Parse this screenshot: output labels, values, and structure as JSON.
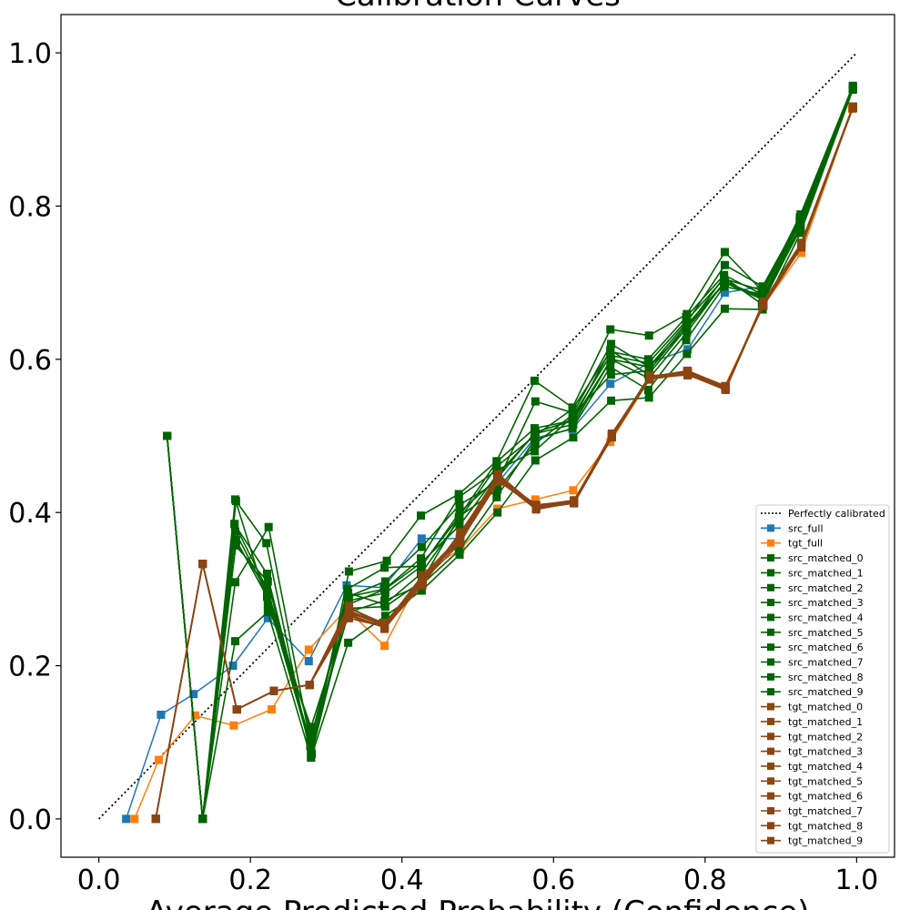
{
  "chart_data": {
    "type": "line",
    "title": "Calibration Curves",
    "xlabel": "Average Predicted Probability (Confidence)",
    "ylabel": "",
    "xlim": [
      -0.05,
      1.05
    ],
    "ylim": [
      -0.05,
      1.05
    ],
    "xticks": [
      0.0,
      0.2,
      0.4,
      0.6,
      0.8,
      1.0
    ],
    "yticks": [
      0.0,
      0.2,
      0.4,
      0.6,
      0.8,
      1.0
    ],
    "xtick_labels": [
      "0.0",
      "0.2",
      "0.4",
      "0.6",
      "0.8",
      "1.0"
    ],
    "ytick_labels": [
      "0.0",
      "0.2",
      "0.4",
      "0.6",
      "0.8",
      "1.0"
    ],
    "grid": false,
    "legend_position": "lower-right",
    "colors": {
      "perfect": "#000000",
      "src_full": "#1f77b4",
      "tgt_full": "#ff7f0e",
      "src_matched": "#006400",
      "tgt_matched": "#8b4513"
    },
    "series": [
      {
        "name": "Perfectly calibrated",
        "style": "dotted",
        "marker": "none",
        "color": "#000000",
        "x": [
          0.0,
          1.0
        ],
        "y": [
          0.0,
          1.0
        ]
      },
      {
        "name": "src_full",
        "style": "solid",
        "marker": "square",
        "color": "#1f77b4",
        "x": [
          0.036,
          0.082,
          0.125,
          0.177,
          0.223,
          0.277,
          0.327,
          0.376,
          0.426,
          0.476,
          0.525,
          0.575,
          0.625,
          0.675,
          0.726,
          0.777,
          0.826,
          0.876,
          0.926,
          0.995
        ],
        "y": [
          0.0,
          0.136,
          0.163,
          0.2,
          0.262,
          0.206,
          0.305,
          0.302,
          0.366,
          0.366,
          0.437,
          0.497,
          0.509,
          0.568,
          0.595,
          0.613,
          0.687,
          0.695,
          0.77,
          0.953
        ]
      },
      {
        "name": "tgt_full",
        "style": "solid",
        "marker": "square",
        "color": "#ff7f0e",
        "x": [
          0.047,
          0.079,
          0.127,
          0.178,
          0.228,
          0.277,
          0.327,
          0.377,
          0.427,
          0.477,
          0.526,
          0.576,
          0.626,
          0.675,
          0.726,
          0.776,
          0.826,
          0.876,
          0.927,
          0.994
        ],
        "y": [
          0.0,
          0.077,
          0.135,
          0.122,
          0.143,
          0.221,
          0.274,
          0.226,
          0.321,
          0.352,
          0.405,
          0.417,
          0.429,
          0.492,
          0.573,
          0.585,
          0.565,
          0.669,
          0.739,
          0.927
        ]
      },
      {
        "name": "src_matched_0",
        "style": "solid",
        "marker": "square",
        "color": "#006400",
        "x": [
          0.09,
          0.137,
          0.181,
          0.221,
          0.28,
          0.33,
          0.38,
          0.425,
          0.475,
          0.525,
          0.575,
          0.625,
          0.675,
          0.726,
          0.776,
          0.826,
          0.876,
          0.926,
          0.995
        ],
        "y": [
          0.5,
          0.0,
          0.415,
          0.36,
          0.08,
          0.323,
          0.337,
          0.396,
          0.424,
          0.467,
          0.572,
          0.537,
          0.639,
          0.631,
          0.659,
          0.74,
          0.689,
          0.789,
          0.957
        ]
      },
      {
        "name": "src_matched_1",
        "style": "solid",
        "marker": "square",
        "color": "#006400",
        "x": [
          0.09,
          0.137,
          0.18,
          0.224,
          0.279,
          0.329,
          0.378,
          0.426,
          0.476,
          0.526,
          0.576,
          0.626,
          0.676,
          0.726,
          0.776,
          0.826,
          0.876,
          0.926,
          0.995
        ],
        "y": [
          0.5,
          0.0,
          0.309,
          0.381,
          0.1,
          0.29,
          0.31,
          0.355,
          0.41,
          0.44,
          0.545,
          0.53,
          0.62,
          0.59,
          0.648,
          0.723,
          0.695,
          0.785,
          0.955
        ]
      },
      {
        "name": "src_matched_2",
        "style": "solid",
        "marker": "square",
        "color": "#006400",
        "x": [
          0.09,
          0.137,
          0.179,
          0.222,
          0.28,
          0.328,
          0.377,
          0.425,
          0.475,
          0.525,
          0.575,
          0.625,
          0.675,
          0.725,
          0.775,
          0.825,
          0.875,
          0.925,
          0.995
        ],
        "y": [
          0.5,
          0.0,
          0.385,
          0.32,
          0.09,
          0.3,
          0.328,
          0.33,
          0.394,
          0.466,
          0.51,
          0.52,
          0.612,
          0.58,
          0.64,
          0.707,
          0.672,
          0.77,
          0.953
        ]
      },
      {
        "name": "src_matched_3",
        "style": "solid",
        "marker": "square",
        "color": "#006400",
        "x": [
          0.09,
          0.137,
          0.18,
          0.223,
          0.281,
          0.329,
          0.378,
          0.426,
          0.476,
          0.526,
          0.576,
          0.626,
          0.676,
          0.726,
          0.776,
          0.826,
          0.876,
          0.926,
          0.995
        ],
        "y": [
          0.5,
          0.0,
          0.357,
          0.31,
          0.085,
          0.28,
          0.3,
          0.335,
          0.383,
          0.45,
          0.503,
          0.515,
          0.6,
          0.575,
          0.635,
          0.702,
          0.68,
          0.775,
          0.955
        ]
      },
      {
        "name": "src_matched_4",
        "style": "solid",
        "marker": "square",
        "color": "#006400",
        "x": [
          0.09,
          0.137,
          0.181,
          0.222,
          0.279,
          0.33,
          0.377,
          0.425,
          0.475,
          0.525,
          0.575,
          0.625,
          0.675,
          0.725,
          0.775,
          0.825,
          0.875,
          0.925,
          0.995
        ],
        "y": [
          0.5,
          0.0,
          0.364,
          0.29,
          0.095,
          0.27,
          0.285,
          0.305,
          0.35,
          0.42,
          0.495,
          0.51,
          0.59,
          0.56,
          0.625,
          0.695,
          0.685,
          0.78,
          0.953
        ]
      },
      {
        "name": "src_matched_5",
        "style": "solid",
        "marker": "square",
        "color": "#006400",
        "x": [
          0.09,
          0.137,
          0.18,
          0.223,
          0.28,
          0.329,
          0.378,
          0.426,
          0.476,
          0.526,
          0.576,
          0.626,
          0.676,
          0.726,
          0.776,
          0.826,
          0.876,
          0.926,
          0.995
        ],
        "y": [
          0.5,
          0.0,
          0.232,
          0.27,
          0.08,
          0.23,
          0.265,
          0.298,
          0.345,
          0.4,
          0.468,
          0.498,
          0.546,
          0.55,
          0.607,
          0.666,
          0.665,
          0.765,
          0.952
        ]
      },
      {
        "name": "src_matched_6",
        "style": "solid",
        "marker": "square",
        "color": "#006400",
        "x": [
          0.09,
          0.137,
          0.179,
          0.222,
          0.281,
          0.328,
          0.377,
          0.425,
          0.475,
          0.525,
          0.575,
          0.625,
          0.675,
          0.725,
          0.775,
          0.825,
          0.875,
          0.925,
          0.995
        ],
        "y": [
          0.5,
          0.0,
          0.385,
          0.3,
          0.11,
          0.29,
          0.3,
          0.34,
          0.42,
          0.455,
          0.48,
          0.525,
          0.605,
          0.595,
          0.65,
          0.705,
          0.69,
          0.78,
          0.954
        ]
      },
      {
        "name": "src_matched_7",
        "style": "solid",
        "marker": "square",
        "color": "#006400",
        "x": [
          0.09,
          0.137,
          0.18,
          0.223,
          0.28,
          0.33,
          0.378,
          0.426,
          0.476,
          0.526,
          0.576,
          0.626,
          0.676,
          0.726,
          0.776,
          0.826,
          0.876,
          0.926,
          0.995
        ],
        "y": [
          0.5,
          0.0,
          0.417,
          0.28,
          0.12,
          0.275,
          0.277,
          0.31,
          0.395,
          0.43,
          0.49,
          0.528,
          0.58,
          0.585,
          0.645,
          0.7,
          0.678,
          0.77,
          0.956
        ]
      },
      {
        "name": "src_matched_8",
        "style": "solid",
        "marker": "square",
        "color": "#006400",
        "x": [
          0.09,
          0.137,
          0.181,
          0.222,
          0.279,
          0.329,
          0.377,
          0.425,
          0.475,
          0.525,
          0.575,
          0.625,
          0.675,
          0.725,
          0.775,
          0.825,
          0.875,
          0.925,
          0.995
        ],
        "y": [
          0.5,
          0.0,
          0.36,
          0.3,
          0.1,
          0.295,
          0.28,
          0.32,
          0.39,
          0.46,
          0.5,
          0.535,
          0.61,
          0.6,
          0.655,
          0.71,
          0.685,
          0.785,
          0.955
        ]
      },
      {
        "name": "src_matched_9",
        "style": "solid",
        "marker": "square",
        "color": "#006400",
        "x": [
          0.09,
          0.137,
          0.18,
          0.223,
          0.28,
          0.33,
          0.378,
          0.426,
          0.476,
          0.526,
          0.576,
          0.626,
          0.676,
          0.726,
          0.776,
          0.826,
          0.876,
          0.926,
          0.995
        ],
        "y": [
          0.5,
          0.0,
          0.375,
          0.292,
          0.09,
          0.285,
          0.295,
          0.33,
          0.4,
          0.445,
          0.505,
          0.52,
          0.6,
          0.59,
          0.64,
          0.7,
          0.682,
          0.78,
          0.953
        ]
      },
      {
        "name": "tgt_matched_0",
        "style": "solid",
        "marker": "square",
        "color": "#8b4513",
        "x": [
          0.075,
          0.137,
          0.182,
          0.231,
          0.278,
          0.33,
          0.377,
          0.427,
          0.477,
          0.527,
          0.577,
          0.627,
          0.677,
          0.727,
          0.777,
          0.827,
          0.877,
          0.927,
          0.995
        ],
        "y": [
          0.0,
          0.333,
          0.143,
          0.167,
          0.175,
          0.267,
          0.25,
          0.31,
          0.37,
          0.447,
          0.407,
          0.413,
          0.5,
          0.576,
          0.58,
          0.563,
          0.672,
          0.748,
          0.928
        ]
      },
      {
        "name": "tgt_matched_1",
        "style": "solid",
        "marker": "square",
        "color": "#8b4513",
        "x": [
          0.075,
          0.137,
          0.182,
          0.231,
          0.278,
          0.33,
          0.377,
          0.427,
          0.477,
          0.527,
          0.577,
          0.627,
          0.677,
          0.727,
          0.777,
          0.827,
          0.877,
          0.927,
          0.995
        ],
        "y": [
          0.0,
          0.333,
          0.143,
          0.167,
          0.175,
          0.275,
          0.255,
          0.315,
          0.362,
          0.44,
          0.41,
          0.415,
          0.502,
          0.578,
          0.583,
          0.562,
          0.675,
          0.752,
          0.929
        ]
      },
      {
        "name": "tgt_matched_2",
        "style": "solid",
        "marker": "square",
        "color": "#8b4513",
        "x": [
          0.075,
          0.137,
          0.182,
          0.231,
          0.278,
          0.33,
          0.377,
          0.427,
          0.477,
          0.527,
          0.577,
          0.627,
          0.677,
          0.727,
          0.777,
          0.827,
          0.877,
          0.927,
          0.995
        ],
        "y": [
          0.0,
          0.333,
          0.143,
          0.167,
          0.175,
          0.27,
          0.252,
          0.312,
          0.365,
          0.445,
          0.405,
          0.412,
          0.498,
          0.575,
          0.58,
          0.56,
          0.673,
          0.75,
          0.928
        ]
      },
      {
        "name": "tgt_matched_3",
        "style": "solid",
        "marker": "square",
        "color": "#8b4513",
        "x": [
          0.075,
          0.137,
          0.182,
          0.231,
          0.278,
          0.33,
          0.377,
          0.427,
          0.477,
          0.527,
          0.577,
          0.627,
          0.677,
          0.727,
          0.777,
          0.827,
          0.877,
          0.927,
          0.995
        ],
        "y": [
          0.0,
          0.333,
          0.143,
          0.167,
          0.175,
          0.265,
          0.25,
          0.305,
          0.372,
          0.45,
          0.408,
          0.415,
          0.503,
          0.577,
          0.585,
          0.565,
          0.67,
          0.746,
          0.93
        ]
      },
      {
        "name": "tgt_matched_4",
        "style": "solid",
        "marker": "square",
        "color": "#8b4513",
        "x": [
          0.075,
          0.137,
          0.182,
          0.231,
          0.278,
          0.33,
          0.377,
          0.427,
          0.477,
          0.527,
          0.577,
          0.627,
          0.677,
          0.727,
          0.777,
          0.827,
          0.877,
          0.927,
          0.995
        ],
        "y": [
          0.0,
          0.333,
          0.143,
          0.167,
          0.175,
          0.272,
          0.253,
          0.318,
          0.368,
          0.442,
          0.406,
          0.414,
          0.5,
          0.576,
          0.582,
          0.561,
          0.674,
          0.749,
          0.928
        ]
      },
      {
        "name": "tgt_matched_5",
        "style": "solid",
        "marker": "square",
        "color": "#8b4513",
        "x": [
          0.075,
          0.137,
          0.182,
          0.231,
          0.278,
          0.33,
          0.377,
          0.427,
          0.477,
          0.527,
          0.577,
          0.627,
          0.677,
          0.727,
          0.777,
          0.827,
          0.877,
          0.927,
          0.995
        ],
        "y": [
          0.0,
          0.333,
          0.143,
          0.167,
          0.175,
          0.278,
          0.248,
          0.31,
          0.36,
          0.448,
          0.409,
          0.416,
          0.501,
          0.579,
          0.579,
          0.564,
          0.671,
          0.751,
          0.929
        ]
      },
      {
        "name": "tgt_matched_6",
        "style": "solid",
        "marker": "square",
        "color": "#8b4513",
        "x": [
          0.075,
          0.137,
          0.182,
          0.231,
          0.278,
          0.33,
          0.377,
          0.427,
          0.477,
          0.527,
          0.577,
          0.627,
          0.677,
          0.727,
          0.777,
          0.827,
          0.877,
          0.927,
          0.995
        ],
        "y": [
          0.0,
          0.333,
          0.143,
          0.167,
          0.175,
          0.268,
          0.256,
          0.313,
          0.366,
          0.443,
          0.404,
          0.413,
          0.499,
          0.574,
          0.581,
          0.562,
          0.672,
          0.747,
          0.928
        ]
      },
      {
        "name": "tgt_matched_7",
        "style": "solid",
        "marker": "square",
        "color": "#8b4513",
        "x": [
          0.075,
          0.137,
          0.182,
          0.231,
          0.278,
          0.33,
          0.377,
          0.427,
          0.477,
          0.527,
          0.577,
          0.627,
          0.677,
          0.727,
          0.777,
          0.827,
          0.877,
          0.927,
          0.995
        ],
        "y": [
          0.0,
          0.333,
          0.143,
          0.167,
          0.175,
          0.262,
          0.251,
          0.308,
          0.374,
          0.446,
          0.41,
          0.414,
          0.502,
          0.576,
          0.584,
          0.563,
          0.675,
          0.752,
          0.93
        ]
      },
      {
        "name": "tgt_matched_8",
        "style": "solid",
        "marker": "square",
        "color": "#8b4513",
        "x": [
          0.075,
          0.137,
          0.182,
          0.231,
          0.278,
          0.33,
          0.377,
          0.427,
          0.477,
          0.527,
          0.577,
          0.627,
          0.677,
          0.727,
          0.777,
          0.827,
          0.877,
          0.927,
          0.995
        ],
        "y": [
          0.0,
          0.333,
          0.143,
          0.167,
          0.175,
          0.276,
          0.254,
          0.316,
          0.364,
          0.441,
          0.407,
          0.412,
          0.5,
          0.577,
          0.58,
          0.561,
          0.673,
          0.749,
          0.929
        ]
      },
      {
        "name": "tgt_matched_9",
        "style": "solid",
        "marker": "square",
        "color": "#8b4513",
        "x": [
          0.075,
          0.137,
          0.182,
          0.231,
          0.278,
          0.33,
          0.377,
          0.427,
          0.477,
          0.527,
          0.577,
          0.627,
          0.677,
          0.727,
          0.777,
          0.827,
          0.877,
          0.927,
          0.995
        ],
        "y": [
          0.0,
          0.333,
          0.143,
          0.167,
          0.175,
          0.27,
          0.252,
          0.311,
          0.369,
          0.444,
          0.408,
          0.414,
          0.501,
          0.577,
          0.582,
          0.562,
          0.672,
          0.75,
          0.929
        ]
      }
    ]
  }
}
